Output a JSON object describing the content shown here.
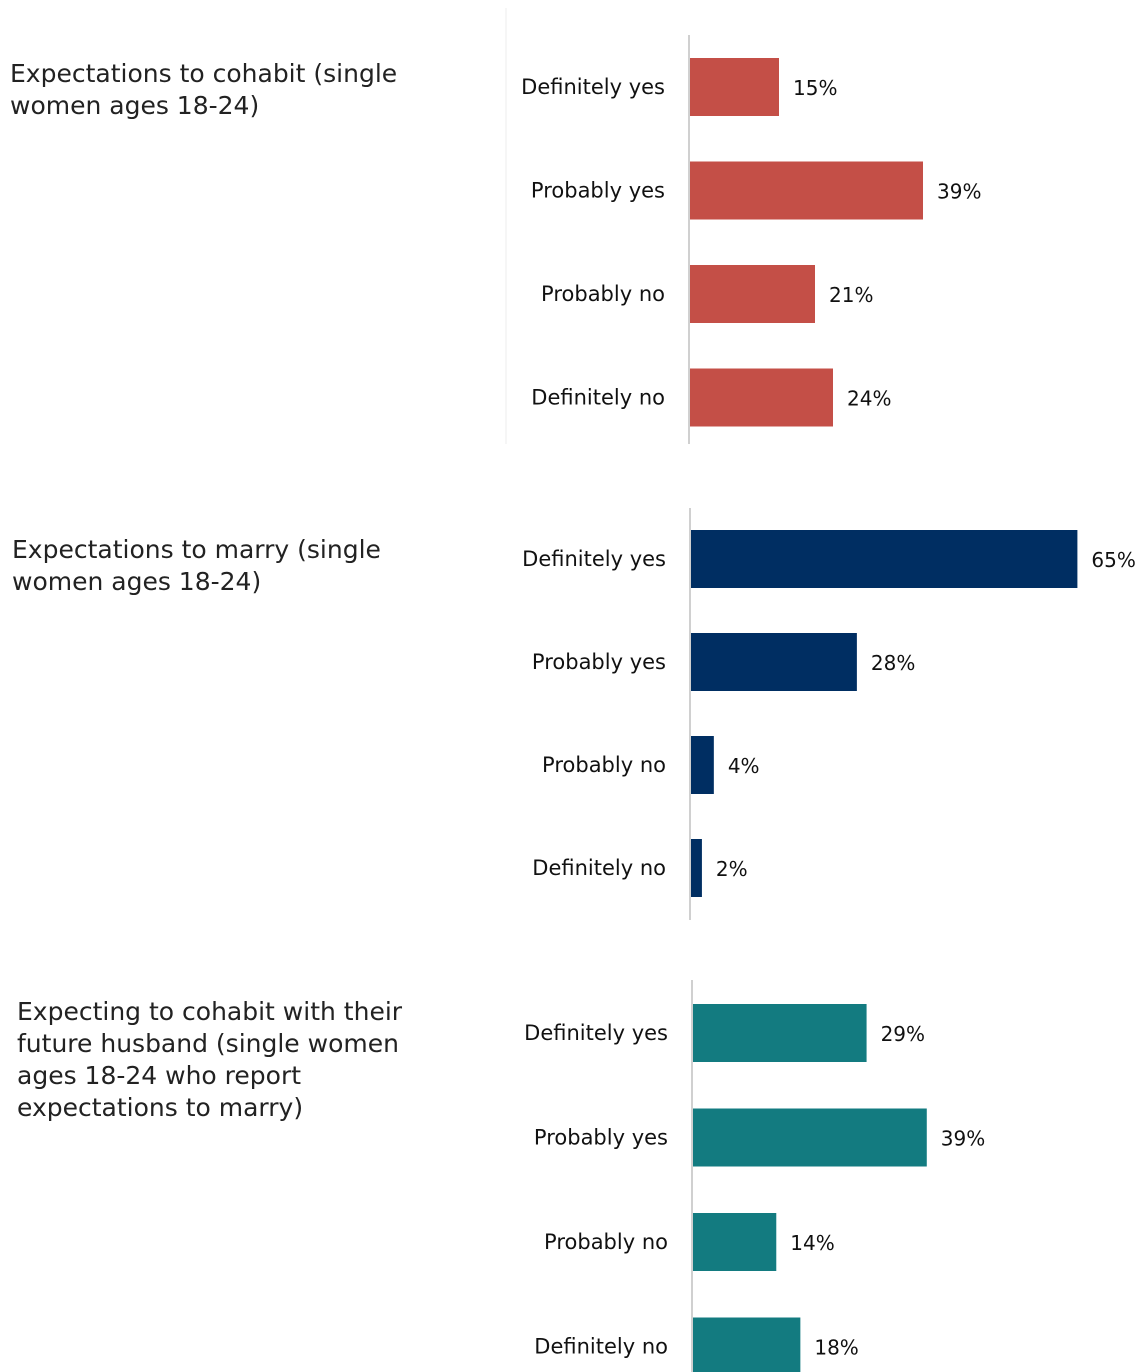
{
  "chart_data": [
    {
      "type": "bar",
      "orientation": "horizontal",
      "title": "Expectations to cohabit (single women ages 18-24)",
      "categories": [
        "Definitely yes",
        "Probably yes",
        "Probably no",
        "Definitely no"
      ],
      "values": [
        15,
        39,
        21,
        24
      ],
      "value_labels": [
        "15%",
        "39%",
        "21%",
        "24%"
      ],
      "color": "#c44f47",
      "xlim": [
        0,
        65
      ]
    },
    {
      "type": "bar",
      "orientation": "horizontal",
      "title": "Expectations to marry (single women ages 18-24)",
      "categories": [
        "Definitely yes",
        "Probably yes",
        "Probably no",
        "Definitely no"
      ],
      "values": [
        65,
        28,
        4,
        2
      ],
      "value_labels": [
        "65%",
        "28%",
        "4%",
        "2%"
      ],
      "color": "#002e62",
      "xlim": [
        0,
        65
      ]
    },
    {
      "type": "bar",
      "orientation": "horizontal",
      "title": "Expecting to cohabit with their future husband (single women ages 18-24 who report expectations to marry)",
      "categories": [
        "Definitely yes",
        "Probably yes",
        "Probably no",
        "Definitely no"
      ],
      "values": [
        29,
        39,
        14,
        18
      ],
      "value_labels": [
        "29%",
        "39%",
        "14%",
        "18%"
      ],
      "color": "#137b80",
      "xlim": [
        0,
        65
      ]
    }
  ]
}
